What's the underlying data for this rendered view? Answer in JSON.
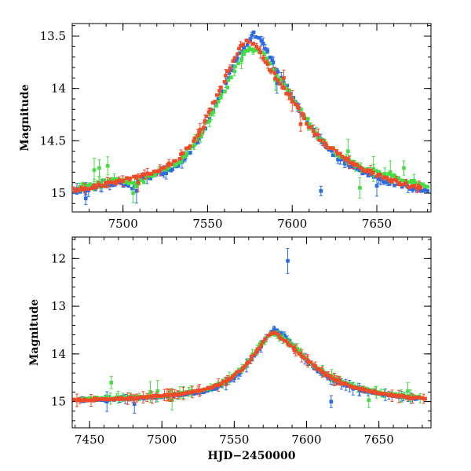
{
  "chart_data": [
    {
      "type": "scatter",
      "title": "",
      "ylabel": "Magnitude",
      "xlabel": "",
      "xlim": [
        7470,
        7682
      ],
      "ylim": [
        15.18,
        13.38
      ],
      "y_inverted": true,
      "xticks": [
        7500,
        7550,
        7600,
        7650
      ],
      "yticks": [
        13.5,
        14,
        14.5,
        15
      ],
      "ytick_labels": [
        "13.5",
        "14",
        "14.5",
        "15"
      ],
      "series": [
        {
          "color": "#2a6ae8",
          "points": [
            [
              7472,
              14.98
            ],
            [
              7480,
              14.96
            ],
            [
              7490,
              14.93
            ],
            [
              7498,
              14.91
            ],
            [
              7505,
              14.94
            ],
            [
              7512,
              14.86
            ],
            [
              7520,
              14.83
            ],
            [
              7528,
              14.78
            ],
            [
              7534,
              14.72
            ],
            [
              7540,
              14.6
            ],
            [
              7546,
              14.45
            ],
            [
              7552,
              14.25
            ],
            [
              7558,
              14.06
            ],
            [
              7563,
              13.86
            ],
            [
              7568,
              13.7
            ],
            [
              7572,
              13.6
            ],
            [
              7575,
              13.54
            ],
            [
              7577,
              13.48
            ],
            [
              7580,
              13.52
            ],
            [
              7584,
              13.62
            ],
            [
              7588,
              13.73
            ],
            [
              7593,
              13.88
            ],
            [
              7598,
              14.02
            ],
            [
              7604,
              14.2
            ],
            [
              7610,
              14.35
            ],
            [
              7618,
              14.52
            ],
            [
              7626,
              14.65
            ],
            [
              7634,
              14.73
            ],
            [
              7642,
              14.8
            ],
            [
              7650,
              14.86
            ],
            [
              7658,
              14.9
            ],
            [
              7666,
              14.93
            ],
            [
              7674,
              14.96
            ],
            [
              7680,
              14.98
            ]
          ],
          "outliers": [
            [
              7478,
              15.05
            ],
            [
              7617,
              14.98
            ],
            [
              7650,
              14.93
            ],
            [
              7508,
              14.98
            ],
            [
              7591,
              13.95
            ]
          ]
        },
        {
          "color": "#44dd44",
          "points": [
            [
              7474,
              14.93
            ],
            [
              7486,
              14.9
            ],
            [
              7497,
              14.86
            ],
            [
              7508,
              14.92
            ],
            [
              7520,
              14.8
            ],
            [
              7533,
              14.72
            ],
            [
              7547,
              14.42
            ],
            [
              7560,
              14.02
            ],
            [
              7571,
              13.66
            ],
            [
              7576,
              13.62
            ],
            [
              7582,
              13.66
            ],
            [
              7591,
              13.86
            ],
            [
              7602,
              14.14
            ],
            [
              7614,
              14.44
            ],
            [
              7628,
              14.64
            ],
            [
              7641,
              14.76
            ],
            [
              7655,
              14.82
            ],
            [
              7668,
              14.88
            ],
            [
              7680,
              14.94
            ]
          ],
          "outliers": [
            [
              7483,
              14.78
            ],
            [
              7486,
              14.76
            ],
            [
              7491,
              14.74
            ],
            [
              7506,
              15.0
            ],
            [
              7570,
              13.73
            ],
            [
              7590,
              13.92
            ],
            [
              7633,
              14.6
            ],
            [
              7640,
              14.95
            ],
            [
              7648,
              14.77
            ],
            [
              7658,
              14.8
            ],
            [
              7666,
              14.76
            ],
            [
              7672,
              14.88
            ]
          ]
        },
        {
          "color": "#f04a28",
          "points": [
            [
              7470,
              14.97
            ],
            [
              7478,
              14.95
            ],
            [
              7486,
              14.93
            ],
            [
              7494,
              14.9
            ],
            [
              7502,
              14.86
            ],
            [
              7510,
              14.84
            ],
            [
              7518,
              14.8
            ],
            [
              7526,
              14.74
            ],
            [
              7533,
              14.66
            ],
            [
              7540,
              14.54
            ],
            [
              7546,
              14.4
            ],
            [
              7552,
              14.2
            ],
            [
              7557,
              14.02
            ],
            [
              7562,
              13.84
            ],
            [
              7566,
              13.7
            ],
            [
              7570,
              13.6
            ],
            [
              7573,
              13.55
            ],
            [
              7576,
              13.56
            ],
            [
              7580,
              13.64
            ],
            [
              7584,
              13.74
            ],
            [
              7588,
              13.84
            ],
            [
              7593,
              13.96
            ],
            [
              7598,
              14.06
            ],
            [
              7604,
              14.2
            ],
            [
              7610,
              14.36
            ],
            [
              7616,
              14.48
            ],
            [
              7622,
              14.56
            ],
            [
              7628,
              14.64
            ],
            [
              7634,
              14.7
            ],
            [
              7640,
              14.76
            ],
            [
              7646,
              14.8
            ],
            [
              7652,
              14.84
            ],
            [
              7658,
              14.88
            ],
            [
              7664,
              14.9
            ],
            [
              7670,
              14.93
            ],
            [
              7676,
              14.95
            ]
          ],
          "outliers": [
            [
              7509,
              14.9
            ],
            [
              7595,
              13.9
            ],
            [
              7600,
              14.12
            ],
            [
              7605,
              14.34
            ]
          ]
        }
      ]
    },
    {
      "type": "scatter",
      "title": "",
      "ylabel": "Magnitude",
      "xlabel": "HJD−2450000",
      "xlim": [
        7438,
        7686
      ],
      "ylim": [
        15.55,
        11.55
      ],
      "y_inverted": true,
      "xticks": [
        7450,
        7500,
        7550,
        7600,
        7650
      ],
      "yticks": [
        12,
        13,
        14,
        15
      ],
      "ytick_labels": [
        "12",
        "13",
        "14",
        "15"
      ],
      "series": [
        {
          "color": "#2a6ae8",
          "points": [
            [
              7443,
              14.97
            ],
            [
              7455,
              14.96
            ],
            [
              7468,
              14.95
            ],
            [
              7480,
              14.94
            ],
            [
              7492,
              14.92
            ],
            [
              7505,
              14.89
            ],
            [
              7518,
              14.84
            ],
            [
              7530,
              14.78
            ],
            [
              7540,
              14.68
            ],
            [
              7550,
              14.5
            ],
            [
              7558,
              14.26
            ],
            [
              7565,
              14.0
            ],
            [
              7571,
              13.72
            ],
            [
              7575,
              13.55
            ],
            [
              7578,
              13.48
            ],
            [
              7582,
              13.55
            ],
            [
              7587,
              13.7
            ],
            [
              7593,
              13.92
            ],
            [
              7600,
              14.16
            ],
            [
              7608,
              14.36
            ],
            [
              7618,
              14.55
            ],
            [
              7628,
              14.68
            ],
            [
              7640,
              14.78
            ],
            [
              7652,
              14.85
            ],
            [
              7664,
              14.9
            ],
            [
              7676,
              14.94
            ]
          ],
          "outliers": [
            [
              7587,
              12.05
            ],
            [
              7617,
              15.0
            ],
            [
              7481,
              15.05
            ],
            [
              7462,
              15.0
            ]
          ]
        },
        {
          "color": "#44dd44",
          "points": [
            [
              7442,
              14.94
            ],
            [
              7455,
              14.93
            ],
            [
              7470,
              14.92
            ],
            [
              7486,
              14.9
            ],
            [
              7500,
              14.88
            ],
            [
              7515,
              14.82
            ],
            [
              7530,
              14.75
            ],
            [
              7545,
              14.56
            ],
            [
              7558,
              14.24
            ],
            [
              7568,
              13.8
            ],
            [
              7575,
              13.58
            ],
            [
              7583,
              13.64
            ],
            [
              7593,
              13.9
            ],
            [
              7605,
              14.24
            ],
            [
              7620,
              14.52
            ],
            [
              7635,
              14.7
            ],
            [
              7650,
              14.8
            ],
            [
              7665,
              14.87
            ],
            [
              7680,
              14.92
            ]
          ],
          "outliers": [
            [
              7465,
              14.6
            ],
            [
              7492,
              14.8
            ],
            [
              7497,
              14.78
            ],
            [
              7507,
              14.97
            ],
            [
              7643,
              14.97
            ],
            [
              7670,
              14.78
            ]
          ]
        },
        {
          "color": "#f04a28",
          "points": [
            [
              7440,
              14.97
            ],
            [
              7450,
              14.96
            ],
            [
              7460,
              14.95
            ],
            [
              7470,
              14.94
            ],
            [
              7480,
              14.93
            ],
            [
              7490,
              14.91
            ],
            [
              7500,
              14.88
            ],
            [
              7510,
              14.85
            ],
            [
              7520,
              14.8
            ],
            [
              7530,
              14.74
            ],
            [
              7540,
              14.64
            ],
            [
              7548,
              14.5
            ],
            [
              7555,
              14.32
            ],
            [
              7561,
              14.12
            ],
            [
              7566,
              13.92
            ],
            [
              7570,
              13.74
            ],
            [
              7573,
              13.62
            ],
            [
              7576,
              13.55
            ],
            [
              7579,
              13.58
            ],
            [
              7583,
              13.68
            ],
            [
              7588,
              13.8
            ],
            [
              7593,
              13.94
            ],
            [
              7600,
              14.12
            ],
            [
              7607,
              14.3
            ],
            [
              7615,
              14.46
            ],
            [
              7624,
              14.6
            ],
            [
              7633,
              14.7
            ],
            [
              7643,
              14.78
            ],
            [
              7653,
              14.84
            ],
            [
              7663,
              14.88
            ],
            [
              7673,
              14.92
            ],
            [
              7682,
              14.94
            ]
          ],
          "outliers": []
        }
      ]
    }
  ]
}
